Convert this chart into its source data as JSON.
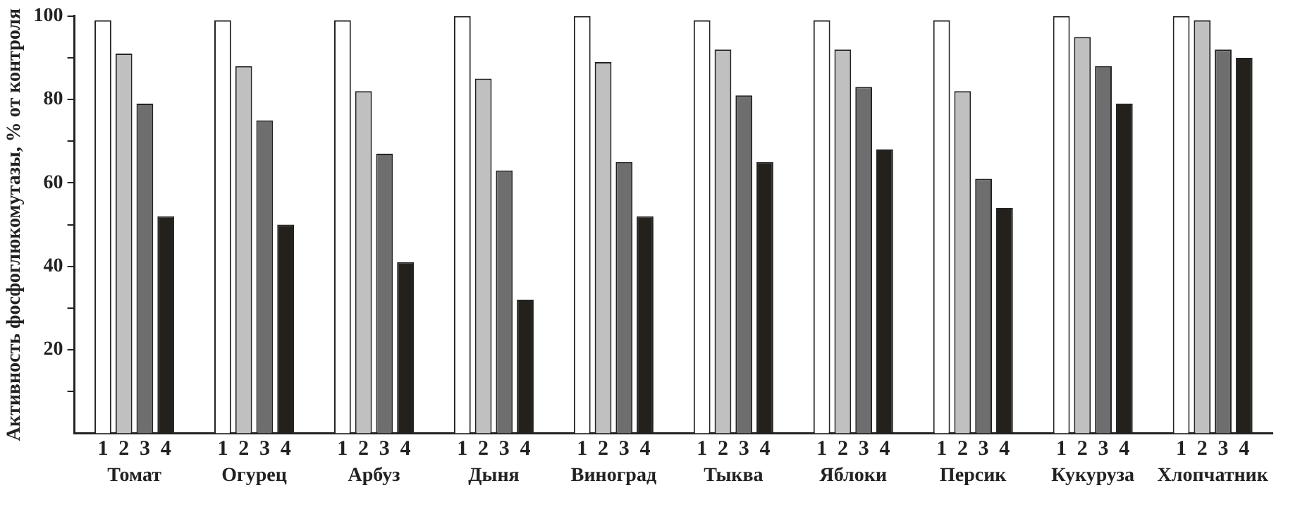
{
  "chart_data": {
    "type": "bar",
    "ylabel": "Активность фосфоглюкомутазы, % от контроля",
    "categories": [
      "Томат",
      "Огурец",
      "Арбуз",
      "Дыня",
      "Виноград",
      "Тыква",
      "Яблоки",
      "Персик",
      "Кукуруза",
      "Хлопчатник"
    ],
    "series": [
      {
        "name": "1",
        "color": "#ffffff",
        "values": [
          99,
          99,
          99,
          100,
          100,
          99,
          99,
          99,
          100,
          100
        ]
      },
      {
        "name": "2",
        "color": "#c0c0c0",
        "values": [
          91,
          88,
          82,
          85,
          89,
          92,
          92,
          82,
          95,
          99
        ]
      },
      {
        "name": "3",
        "color": "#6e6e6e",
        "values": [
          79,
          75,
          67,
          63,
          65,
          81,
          83,
          61,
          88,
          92
        ]
      },
      {
        "name": "4",
        "color": "#24211c",
        "values": [
          52,
          50,
          41,
          32,
          52,
          65,
          68,
          54,
          79,
          90
        ]
      }
    ],
    "ylim": [
      0,
      100
    ],
    "yticks": [
      {
        "value": 10,
        "label": null
      },
      20,
      {
        "value": 30,
        "label": null
      },
      40,
      {
        "value": 50,
        "label": null
      },
      60,
      {
        "value": 70,
        "label": null
      },
      80,
      {
        "value": 90,
        "label": null
      },
      100
    ],
    "grid": false,
    "legend": false
  }
}
